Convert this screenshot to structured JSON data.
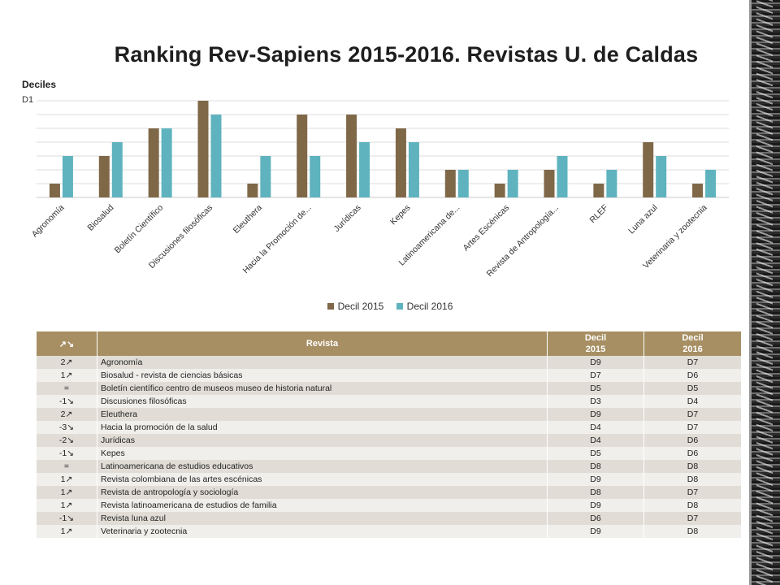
{
  "title": "Ranking Rev-Sapiens 2015-2016. Revistas U. de Caldas",
  "chart_data": {
    "type": "bar",
    "ylabel": "Deciles",
    "y_tick_label": "D1",
    "y_axis": "decile rank, D1 at top (inverted), D10 at bottom",
    "ylim": [
      "D10",
      "D1"
    ],
    "grid": true,
    "legend_position": "bottom",
    "categories": [
      "Agronomía",
      "Biosalud",
      "Boletín Científico",
      "Discusiones filosóficas",
      "Eleuthera",
      "Hacia la Promoción de...",
      "Jurídicas",
      "Kepes",
      "Latinoamericana de...",
      "Artes Escénicas",
      "Revista de Antropología...",
      "RLEF",
      "Luna azul",
      "Veterinaria y zootecnia"
    ],
    "series": [
      {
        "name": "Decil 2015",
        "color": "#7f6848",
        "values": [
          9,
          7,
          5,
          3,
          9,
          4,
          4,
          5,
          8,
          9,
          8,
          9,
          6,
          9
        ]
      },
      {
        "name": "Decil 2016",
        "color": "#5eb3be",
        "values": [
          7,
          6,
          5,
          4,
          7,
          7,
          6,
          6,
          8,
          8,
          7,
          8,
          7,
          8
        ]
      }
    ]
  },
  "table": {
    "headers": {
      "rank": "↗↘",
      "name": "Revista",
      "d2015_line1": "Decil",
      "d2015_line2": "2015",
      "d2016_line1": "Decil",
      "d2016_line2": "2016"
    },
    "rows": [
      {
        "rank": "2↗",
        "name": "Agronomía",
        "d2015": "D9",
        "d2016": "D7"
      },
      {
        "rank": "1↗",
        "name": "Biosalud - revista de ciencias básicas",
        "d2015": "D7",
        "d2016": "D6"
      },
      {
        "rank": "=",
        "name": "Boletín científico centro de museos museo de historia natural",
        "d2015": "D5",
        "d2016": "D5"
      },
      {
        "rank": "-1↘",
        "name": "Discusiones filosóficas",
        "d2015": "D3",
        "d2016": "D4"
      },
      {
        "rank": "2↗",
        "name": "Eleuthera",
        "d2015": "D9",
        "d2016": "D7"
      },
      {
        "rank": "-3↘",
        "name": "Hacia la promoción de la salud",
        "d2015": "D4",
        "d2016": "D7"
      },
      {
        "rank": "-2↘",
        "name": "Jurídicas",
        "d2015": "D4",
        "d2016": "D6"
      },
      {
        "rank": "-1↘",
        "name": "Kepes",
        "d2015": "D5",
        "d2016": "D6"
      },
      {
        "rank": "=",
        "name": "Latinoamericana de estudios educativos",
        "d2015": "D8",
        "d2016": "D8"
      },
      {
        "rank": "1↗",
        "name": "Revista colombiana de las artes escénicas",
        "d2015": "D9",
        "d2016": "D8"
      },
      {
        "rank": "1↗",
        "name": "Revista de antropología y sociología",
        "d2015": "D8",
        "d2016": "D7"
      },
      {
        "rank": "1↗",
        "name": "Revista latinoamericana de estudios de familia",
        "d2015": "D9",
        "d2016": "D8"
      },
      {
        "rank": "-1↘",
        "name": "Revista luna azul",
        "d2015": "D6",
        "d2016": "D7"
      },
      {
        "rank": "1↗",
        "name": "Veterinaria y zootecnia",
        "d2015": "D9",
        "d2016": "D8"
      }
    ]
  }
}
